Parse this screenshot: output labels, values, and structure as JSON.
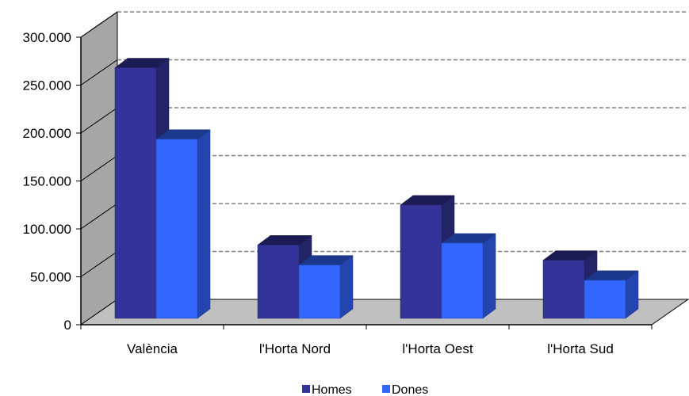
{
  "chart_data": {
    "type": "bar",
    "title": "",
    "xlabel": "",
    "ylabel": "",
    "categories": [
      "València",
      "l'Horta Nord",
      "l'Horta Oest",
      "l'Horta Sud"
    ],
    "series": [
      {
        "name": "Homes",
        "values": [
          263000,
          77000,
          119000,
          61000
        ],
        "color": "#333399"
      },
      {
        "name": "Dones",
        "values": [
          188000,
          56000,
          79000,
          40000
        ],
        "color": "#3366ff"
      }
    ],
    "ylim": [
      0,
      300000
    ],
    "yticks": [
      0,
      50000,
      100000,
      150000,
      200000,
      250000,
      300000
    ],
    "ytick_labels": [
      "0",
      "50.000",
      "100.000",
      "150.000",
      "200.000",
      "250.000",
      "300.000"
    ],
    "grid": true,
    "three_d": true,
    "legend_position": "bottom",
    "colors": {
      "wall": "#a6a6a6",
      "floor": "#c0c0c0",
      "grid": "#808080"
    }
  }
}
